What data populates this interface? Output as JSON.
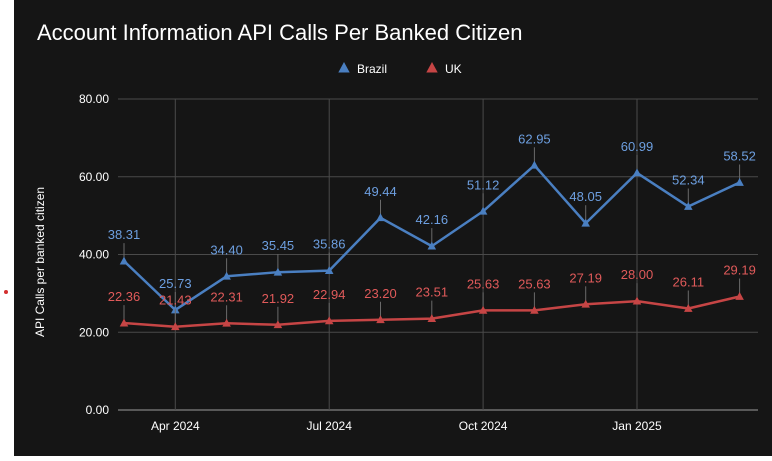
{
  "chart_data": {
    "type": "line",
    "title": "Account Information API Calls Per Banked Citizen",
    "ylabel": "API Calls per banked citizen",
    "xlabel": "",
    "ylim": [
      0,
      80
    ],
    "yticks": [
      "0.00",
      "20.00",
      "40.00",
      "60.00",
      "80.00"
    ],
    "x": [
      "2024-03",
      "2024-04",
      "2024-05",
      "2024-06",
      "2024-07",
      "2024-08",
      "2024-09",
      "2024-10",
      "2024-11",
      "2024-12",
      "2025-01",
      "2025-02",
      "2025-03"
    ],
    "xticks": [
      {
        "x": "2024-04",
        "label": "Apr 2024"
      },
      {
        "x": "2024-07",
        "label": "Jul 2024"
      },
      {
        "x": "2024-10",
        "label": "Oct 2024"
      },
      {
        "x": "2025-01",
        "label": "Jan 2025"
      }
    ],
    "legend_position": "top",
    "grid": true,
    "series": [
      {
        "name": "Brazil",
        "color": "#4a7fc1",
        "label_color": "#6d9fe0",
        "values": [
          38.31,
          25.73,
          34.4,
          35.45,
          35.86,
          49.44,
          42.16,
          51.12,
          62.95,
          48.05,
          60.99,
          52.34,
          58.52
        ]
      },
      {
        "name": "UK",
        "color": "#c64545",
        "label_color": "#e05a5a",
        "values": [
          22.36,
          21.43,
          22.31,
          21.92,
          22.94,
          23.2,
          23.51,
          25.63,
          25.63,
          27.19,
          28.0,
          26.11,
          29.19
        ]
      }
    ]
  }
}
